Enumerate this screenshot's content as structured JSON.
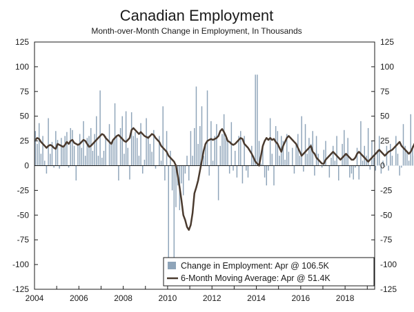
{
  "chart_data": {
    "type": "bar+line",
    "title": "Canadian Employment",
    "subtitle": "Month-over-Month Change in Employment,  In Thousands",
    "xlabel": "",
    "ylabel": "",
    "x_start": "2004-01",
    "x_range": [
      "2004-01",
      "2019-04"
    ],
    "x_ticks": [
      "2004",
      "2006",
      "2008",
      "2010",
      "2012",
      "2014",
      "2016",
      "2018"
    ],
    "ylim": [
      -125,
      125
    ],
    "y_ticks": [
      "125",
      "100",
      "75",
      "50",
      "25",
      "0",
      "-25",
      "-50",
      "-75",
      "-100",
      "-125"
    ],
    "grid": false,
    "legend_position": "bottom-right",
    "colors": {
      "bars": "#8ea4b9",
      "line": "#4a3a2e",
      "axis": "#1a1a1a"
    },
    "series": [
      {
        "name": "Change in Employment: Apr @ 106.5K",
        "kind": "bar",
        "values": [
          35,
          22,
          43,
          12,
          30,
          5,
          -8,
          48,
          12,
          24,
          -2,
          35,
          26,
          -3,
          28,
          18,
          30,
          34,
          -2,
          38,
          36,
          20,
          -15,
          22,
          32,
          18,
          45,
          10,
          28,
          30,
          38,
          15,
          32,
          50,
          10,
          76,
          8,
          15,
          30,
          0,
          42,
          22,
          25,
          63,
          30,
          -15,
          38,
          50,
          12,
          55,
          18,
          -14,
          54,
          30,
          34,
          28,
          10,
          43,
          -8,
          6,
          48,
          30,
          22,
          14,
          36,
          -3,
          0,
          30,
          5,
          60,
          -15,
          35,
          -120,
          15,
          -25,
          -120,
          -42,
          -20,
          -45,
          -18,
          -30,
          -8,
          10,
          -15,
          35,
          10,
          38,
          80,
          22,
          40,
          60,
          10,
          20,
          76,
          -10,
          45,
          5,
          30,
          42,
          -35,
          20,
          32,
          52,
          28,
          25,
          -8,
          44,
          -5,
          15,
          -12,
          30,
          35,
          -18,
          30,
          -5,
          -12,
          0,
          20,
          10,
          92,
          92,
          25,
          2,
          18,
          -12,
          -20,
          -5,
          48,
          12,
          -20,
          40,
          35,
          10,
          30,
          25,
          6,
          32,
          14,
          0,
          18,
          -8,
          22,
          32,
          10,
          50,
          -6,
          42,
          12,
          28,
          22,
          35,
          -10,
          30,
          12,
          0,
          -2,
          16,
          25,
          0,
          -12,
          8,
          20,
          5,
          30,
          -15,
          0,
          22,
          36,
          12,
          28,
          -12,
          -8,
          -14,
          -2,
          18,
          -14,
          45,
          5,
          20,
          10,
          38,
          -4,
          25,
          8,
          -5,
          16,
          30,
          -8,
          5,
          -1,
          20,
          -5,
          22,
          10,
          0,
          30,
          12,
          -10,
          -2,
          42,
          20,
          15,
          5,
          52,
          20,
          10,
          -2,
          18,
          -4,
          28,
          26,
          43,
          12,
          -18,
          60,
          22,
          50,
          34,
          14,
          20,
          -3,
          12,
          36,
          30,
          -10,
          28,
          10,
          -65,
          30,
          22,
          10,
          -5,
          22,
          32,
          8,
          15,
          -38,
          56,
          68,
          15,
          30,
          78,
          10,
          54,
          62,
          74,
          -8,
          55,
          106.5
        ]
      },
      {
        "name": "6-Month Moving Average: Apr @ 51.4K",
        "kind": "line",
        "values": [
          26,
          28,
          27,
          24,
          22,
          20,
          18,
          20,
          21,
          20,
          18,
          17,
          22,
          21,
          20,
          19,
          21,
          24,
          22,
          25,
          26,
          23,
          22,
          21,
          22,
          24,
          26,
          25,
          22,
          19,
          20,
          22,
          24,
          26,
          28,
          30,
          32,
          31,
          28,
          26,
          24,
          22,
          26,
          28,
          30,
          31,
          29,
          27,
          25,
          24,
          26,
          28,
          36,
          38,
          36,
          34,
          32,
          34,
          32,
          30,
          29,
          28,
          30,
          32,
          31,
          28,
          26,
          24,
          20,
          18,
          16,
          14,
          10,
          8,
          6,
          4,
          0,
          -10,
          -22,
          -35,
          -50,
          -55,
          -62,
          -65,
          -60,
          -48,
          -28,
          -22,
          -15,
          -5,
          5,
          15,
          22,
          25,
          26,
          27,
          26,
          27,
          28,
          30,
          35,
          37,
          34,
          30,
          25,
          24,
          22,
          21,
          22,
          24,
          26,
          28,
          27,
          22,
          20,
          18,
          15,
          12,
          8,
          4,
          2,
          0,
          10,
          20,
          25,
          28,
          26,
          28,
          26,
          27,
          24,
          22,
          18,
          14,
          20,
          24,
          28,
          30,
          28,
          26,
          24,
          22,
          18,
          14,
          10,
          12,
          14,
          16,
          18,
          20,
          14,
          12,
          8,
          6,
          4,
          2,
          2,
          6,
          8,
          10,
          12,
          14,
          12,
          10,
          8,
          6,
          8,
          10,
          12,
          10,
          8,
          6,
          6,
          8,
          12,
          14,
          12,
          10,
          8,
          6,
          4,
          6,
          8,
          10,
          12,
          14,
          16,
          14,
          12,
          10,
          12,
          14,
          15,
          16,
          18,
          20,
          22,
          24,
          20,
          18,
          16,
          14,
          12,
          14,
          18,
          22,
          24,
          26,
          30,
          32,
          28,
          26,
          24,
          20,
          18,
          14,
          10,
          8,
          12,
          16,
          20,
          24,
          26,
          24,
          22,
          20,
          14,
          8,
          4,
          0,
          2,
          6,
          10,
          14,
          20,
          24,
          28,
          30,
          32,
          36,
          40,
          44,
          48,
          45,
          42,
          40,
          51.4
        ]
      }
    ]
  }
}
